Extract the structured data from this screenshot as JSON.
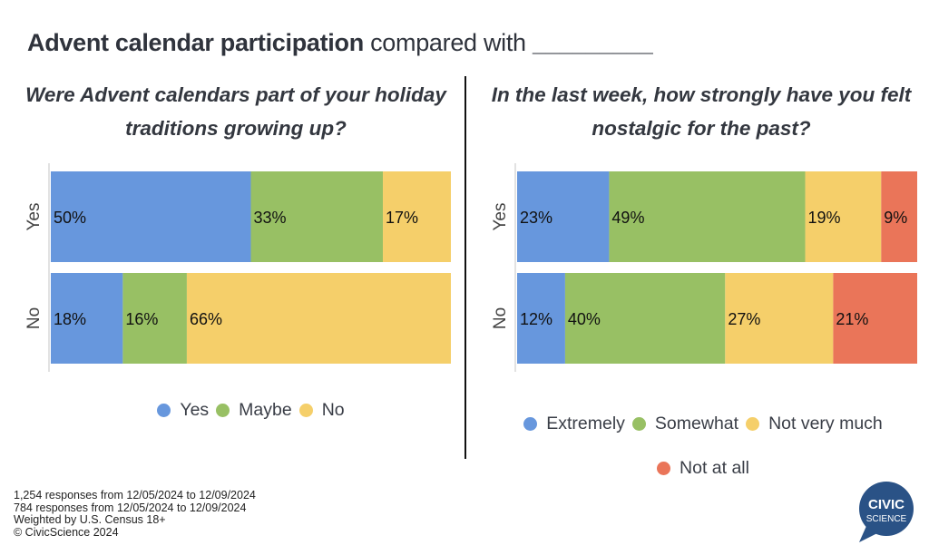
{
  "title": {
    "bold": "Advent calendar participation",
    "rest": "compared with",
    "blank": "_________"
  },
  "colors": {
    "blue": "#6797dd",
    "green": "#98c064",
    "yellow": "#f5cf6a",
    "red": "#ea7559",
    "axis": "#d9d9d9",
    "logo": "#2a5286"
  },
  "chart_data": [
    {
      "type": "bar",
      "orientation": "horizontal-stacked-100",
      "title": "Were Advent calendars part of your holiday traditions growing up?",
      "categories": [
        "Yes",
        "No"
      ],
      "series": [
        {
          "name": "Yes",
          "color": "#6797dd",
          "values": [
            50,
            18
          ]
        },
        {
          "name": "Maybe",
          "color": "#98c064",
          "values": [
            33,
            16
          ]
        },
        {
          "name": "No",
          "color": "#f5cf6a",
          "values": [
            17,
            66
          ]
        }
      ],
      "value_labels": [
        [
          "50%",
          "33%",
          "17%"
        ],
        [
          "18%",
          "16%",
          "66%"
        ]
      ],
      "xlim": [
        0,
        100
      ],
      "legend": "bottom"
    },
    {
      "type": "bar",
      "orientation": "horizontal-stacked-100",
      "title": "In the last week, how strongly have you felt nostalgic for the past?",
      "categories": [
        "Yes",
        "No"
      ],
      "series": [
        {
          "name": "Extremely",
          "color": "#6797dd",
          "values": [
            23,
            12
          ]
        },
        {
          "name": "Somewhat",
          "color": "#98c064",
          "values": [
            49,
            40
          ]
        },
        {
          "name": "Not very much",
          "color": "#f5cf6a",
          "values": [
            19,
            27
          ]
        },
        {
          "name": "Not at all",
          "color": "#ea7559",
          "values": [
            9,
            21
          ]
        }
      ],
      "value_labels": [
        [
          "23%",
          "49%",
          "19%",
          "9%"
        ],
        [
          "12%",
          "40%",
          "27%",
          "21%"
        ]
      ],
      "xlim": [
        0,
        100
      ],
      "legend": "bottom"
    }
  ],
  "footer": [
    "1,254 responses from 12/05/2024 to 12/09/2024",
    "784 responses from 12/05/2024 to 12/09/2024",
    "Weighted by U.S. Census 18+",
    "© CivicScience 2024"
  ],
  "logo": {
    "line1": "CIVIC",
    "line2": "SCIENCE"
  }
}
